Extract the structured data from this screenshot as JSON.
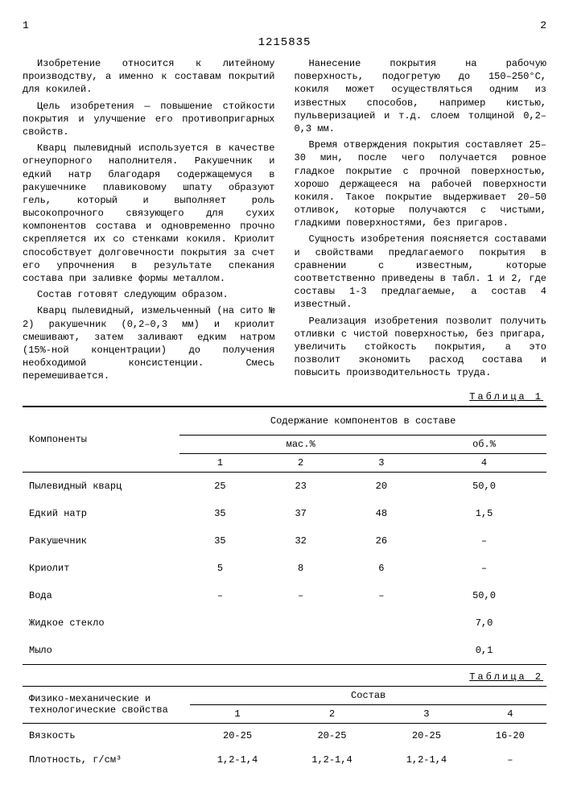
{
  "patent_number": "1215835",
  "page_left": "1",
  "page_right": "2",
  "body_text": [
    "Изобретение относится к литейному производству, а именно к составам покрытий для кокилей.",
    "Цель изобретения — повышение стойкости покрытия и улучшение его противопригарных свойств.",
    "Кварц пылевидный используется в качестве огнеупорного наполнителя. Ракушечник и едкий натр благодаря содержащемуся в ракушечнике плавиковому шпату образуют гель, который и выполняет роль высокопрочного связующего для сухих компонентов состава и одновременно прочно скрепляется их со стенками кокиля. Криолит способствует долговечности покрытия за счет его упрочнения в результате спекания состава при заливке формы металлом.",
    "Состав готовят следующим образом.",
    "Кварц пылевидный, измельченный (на сито № 2) ракушечник (0,2–0,3 мм) и криолит смешивают, затем заливают едким натром (15%-ной концентрации) до получения необходимой консистенции. Смесь перемешивается.",
    "Нанесение покрытия на рабочую поверхность, подогретую до 150–250°С, кокиля может осуществляться одним из известных способов, например кистью, пульверизацией и т.д. слоем толщиной 0,2–0,3 мм.",
    "Время отверждения покрытия составляет 25–30 мин, после чего получается ровное гладкое покрытие с прочной поверхностью, хорошо держащееся на рабочей поверхности кокиля. Такое покрытие выдерживает 20–50 отливок, которые получаются с чистыми, гладкими поверхностями, без пригаров.",
    "Сущность изобретения поясняется составами и свойствами предлагаемого покрытия в сравнении с известным, которые соответственно приведены в табл. 1 и 2, где составы 1-3 предлагаемые, а состав 4 известный.",
    "Реализация изобретения позволит получить отливки с чистой поверхностью, без пригара, увеличить стойкость покрытия, а это позволит экономить расход состава и повысить производительность труда."
  ],
  "table1": {
    "label": "Таблица 1",
    "row_header": "Компоненты",
    "group_header": "Содержание компонентов в составе",
    "sub_headers": [
      "мас.%",
      "об.%"
    ],
    "col_nums": [
      "1",
      "2",
      "3",
      "4"
    ],
    "rows": [
      {
        "name": "Пылевидный кварц",
        "vals": [
          "25",
          "23",
          "20",
          "50,0"
        ]
      },
      {
        "name": "Едкий натр",
        "vals": [
          "35",
          "37",
          "48",
          "1,5"
        ]
      },
      {
        "name": "Ракушечник",
        "vals": [
          "35",
          "32",
          "26",
          "–"
        ]
      },
      {
        "name": "Криолит",
        "vals": [
          "5",
          "8",
          "6",
          "–"
        ]
      },
      {
        "name": "Вода",
        "vals": [
          "–",
          "–",
          "–",
          "50,0"
        ]
      },
      {
        "name": "Жидкое стекло",
        "vals": [
          "",
          "",
          "",
          "7,0"
        ]
      },
      {
        "name": "Мыло",
        "vals": [
          "",
          "",
          "",
          "0,1"
        ]
      }
    ]
  },
  "table2": {
    "label": "Таблица 2",
    "row_header": "Физико-механические и технологические свойства",
    "group_header": "Состав",
    "col_nums": [
      "1",
      "2",
      "3",
      "4"
    ],
    "rows": [
      {
        "name": "Вязкость",
        "vals": [
          "20-25",
          "20-25",
          "20-25",
          "16-20"
        ]
      },
      {
        "name": "Плотность, г/см³",
        "vals": [
          "1,2-1,4",
          "1,2-1,4",
          "1,2-1,4",
          "–"
        ]
      }
    ]
  },
  "colors": {
    "text": "#000000",
    "background": "#ffffff",
    "rule": "#000000"
  }
}
